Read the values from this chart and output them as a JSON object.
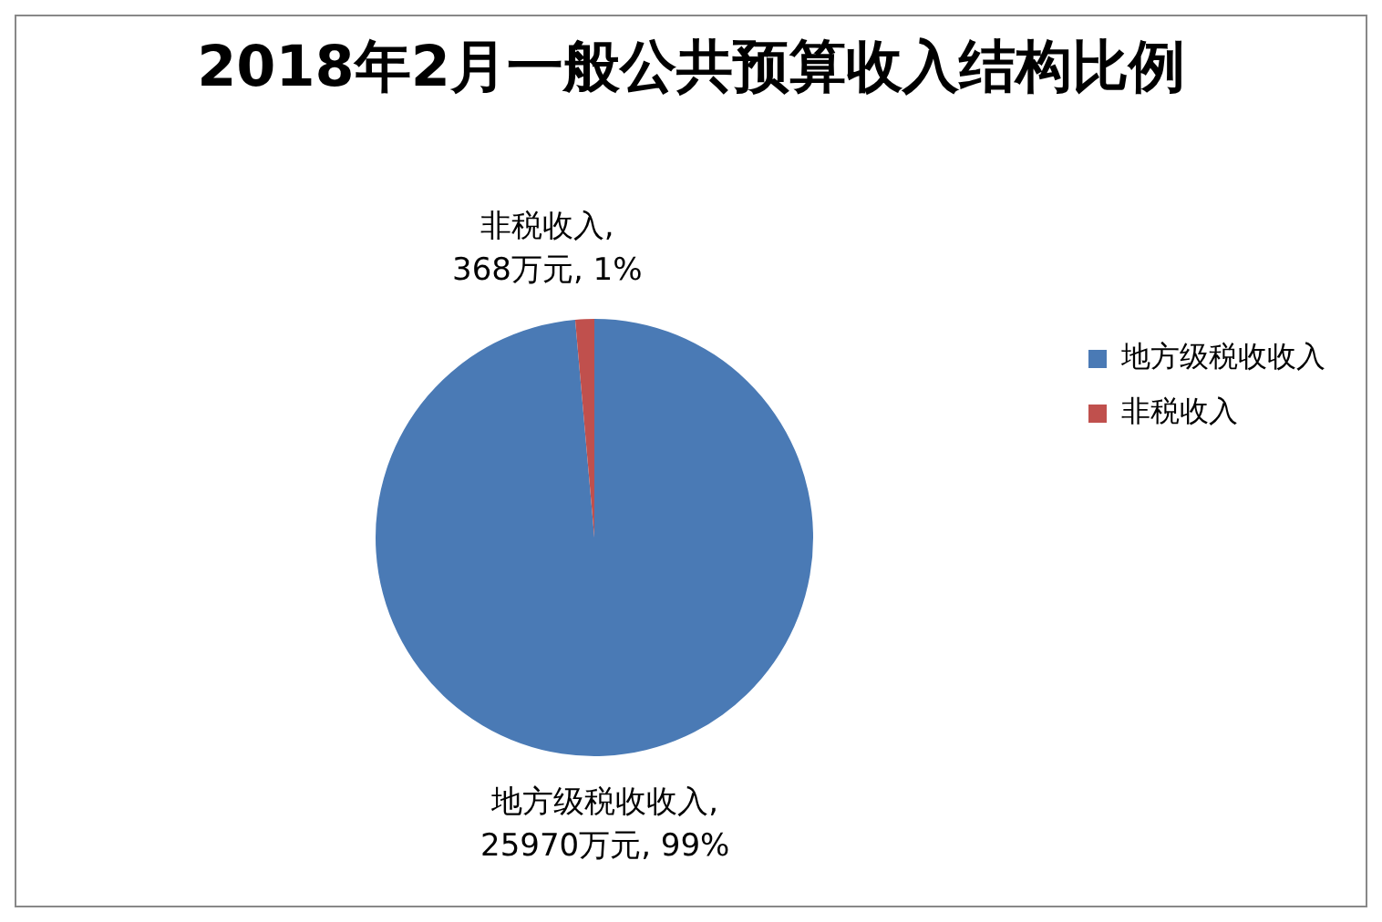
{
  "chart_data": {
    "type": "pie",
    "title": "2018年2月一般公共预算收入结构比例",
    "categories": [
      "地方级税收收入",
      "非税收入"
    ],
    "values": [
      25970,
      368
    ],
    "colors": [
      "#4a7ab5",
      "#c0504d"
    ],
    "value_labels": [
      "地方级税收收入, 25970万元, 99%",
      "非税收入, 368万元, 1%"
    ],
    "legend": "top right"
  }
}
